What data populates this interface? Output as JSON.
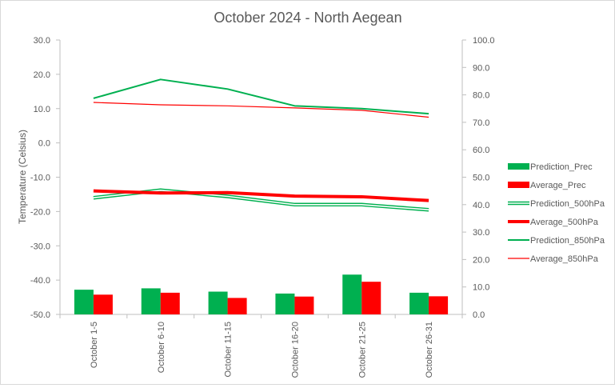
{
  "chart_data": {
    "type": "bar",
    "title": "October 2024 - North Aegean",
    "ylabel": "Temperature  (Celsius)",
    "y2label": "",
    "categories": [
      "October 1-5",
      "October 6-10",
      "October 11-15",
      "October 16-20",
      "October 21-25",
      "October 26-31"
    ],
    "ylim": [
      -50,
      30
    ],
    "y2lim": [
      0,
      100
    ],
    "yticks": [
      "30.0",
      "20.0",
      "10.0",
      "0.0",
      "-10.0",
      "-20.0",
      "-30.0",
      "-40.0",
      "-50.0"
    ],
    "y2ticks": [
      "100.0",
      "90.0",
      "80.0",
      "70.0",
      "60.0",
      "50.0",
      "40.0",
      "30.0",
      "20.0",
      "10.0",
      "0.0"
    ],
    "bar_series": [
      {
        "name": "Prediction_Prec",
        "axis": "secondary",
        "color": "#00b050",
        "values": [
          9.0,
          9.5,
          8.3,
          7.6,
          14.5,
          7.9
        ]
      },
      {
        "name": "Average_Prec",
        "axis": "secondary",
        "color": "#ff0000",
        "values": [
          7.2,
          7.9,
          6.0,
          6.5,
          11.9,
          6.6
        ]
      }
    ],
    "line_series": [
      {
        "name": "Prediction_500hPa",
        "axis": "primary",
        "color": "#00b050",
        "style": "double",
        "values": [
          -16.0,
          -13.8,
          -15.6,
          -18.0,
          -18.0,
          -19.5
        ]
      },
      {
        "name": "Average_500hPa",
        "axis": "primary",
        "color": "#ff0000",
        "style": "thick",
        "values": [
          -14.0,
          -14.6,
          -14.5,
          -15.5,
          -15.7,
          -16.8
        ]
      },
      {
        "name": "Prediction_850hPa",
        "axis": "primary",
        "color": "#00b050",
        "style": "normal",
        "values": [
          13.0,
          18.5,
          15.7,
          10.8,
          10.0,
          8.5
        ]
      },
      {
        "name": "Average_850hPa",
        "axis": "primary",
        "color": "#ff0000",
        "style": "thin",
        "values": [
          11.8,
          11.1,
          10.8,
          10.2,
          9.5,
          7.5
        ]
      }
    ],
    "legend": {
      "position": "right"
    },
    "grid": false
  }
}
